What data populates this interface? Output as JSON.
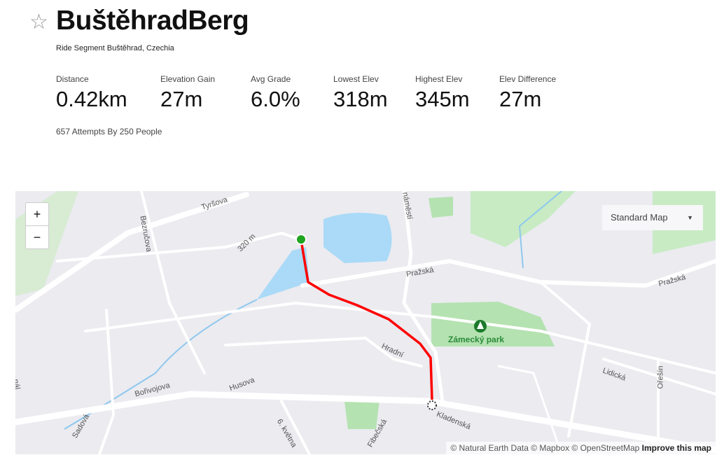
{
  "segment": {
    "title": "BuštěhradBerg",
    "subtitle": "Ride Segment Buštěhrad, Czechia",
    "attempts": "657 Attempts By 250 People",
    "star_icon": "star-outline-icon"
  },
  "stats": [
    {
      "label": "Distance",
      "value": "0.42km"
    },
    {
      "label": "Elevation Gain",
      "value": "27m"
    },
    {
      "label": "Avg Grade",
      "value": "6.0%"
    },
    {
      "label": "Lowest Elev",
      "value": "318m"
    },
    {
      "label": "Highest Elev",
      "value": "345m"
    },
    {
      "label": "Elev Difference",
      "value": "27m"
    }
  ],
  "map": {
    "zoom_in": "+",
    "zoom_out": "−",
    "style_select": "Standard Map",
    "attribution": "© Natural Earth Data © Mapbox © OpenStreetMap",
    "improve_link": "Improve this map",
    "park_label": "Zámecký park",
    "street_labels": [
      "Tyršova",
      "Bezručova",
      "320 m",
      "náměstí",
      "Pražská",
      "Pražská",
      "Hradní",
      "Lidická",
      "Ořešín",
      "Husova",
      "Bořivojova",
      "Sadová",
      "6. května",
      "Kladenská",
      "Fibečská",
      "nál"
    ],
    "colors": {
      "route": "#ff0000",
      "start": "#1fa51f",
      "water": "#aadaf7",
      "park": "#b4e2b0",
      "land": "#ebebf0"
    }
  }
}
